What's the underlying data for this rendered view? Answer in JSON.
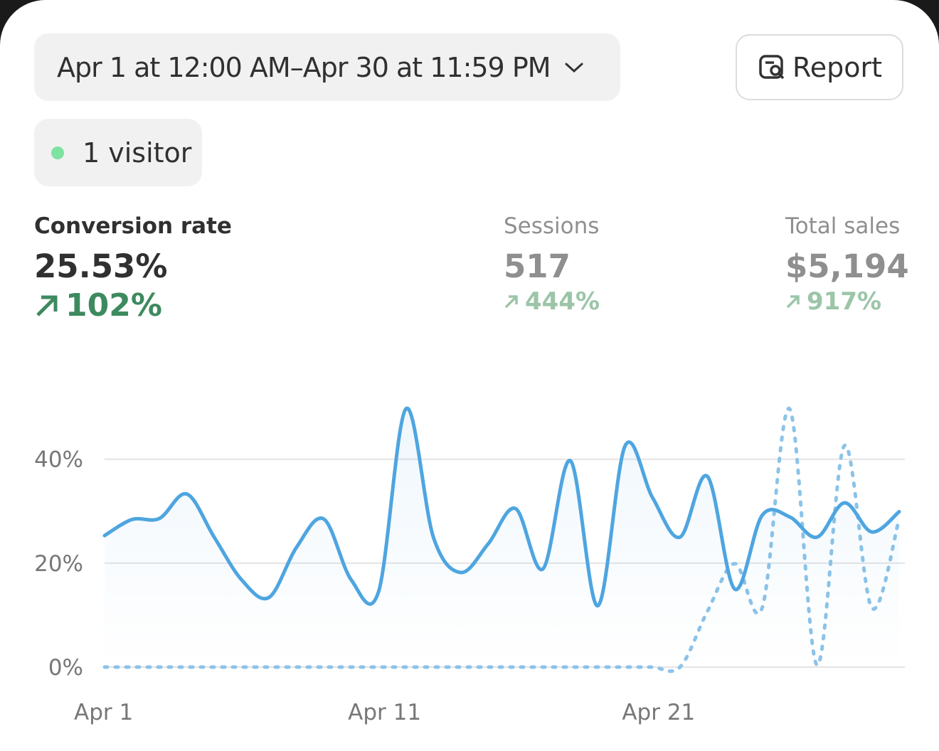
{
  "header": {
    "date_range": "Apr 1 at 12:00 AM–Apr 30 at 11:59 PM",
    "report_button": "Report",
    "visitors": "1 visitor"
  },
  "metrics": [
    {
      "label": "Conversion rate",
      "value": "25.53%",
      "change": "102%"
    },
    {
      "label": "Sessions",
      "value": "517",
      "change": "444%"
    },
    {
      "label": "Total sales",
      "value": "$5,194",
      "change": "917%"
    }
  ],
  "chart_data": {
    "type": "line",
    "categories": [
      "Apr 1",
      null,
      null,
      null,
      null,
      null,
      null,
      null,
      null,
      null,
      "Apr 11",
      null,
      null,
      null,
      null,
      null,
      null,
      null,
      null,
      null,
      "Apr 21",
      null,
      null,
      null,
      null,
      null,
      null,
      null,
      null,
      null
    ],
    "series": [
      {
        "color": "#4ea5e0",
        "style": "solid",
        "values": [
          25.3,
          28.4,
          28.6,
          33.3,
          25,
          16.8,
          13.4,
          23,
          28.5,
          16.8,
          14.5,
          49.7,
          25,
          18.2,
          23.7,
          30.5,
          18.9,
          39.7,
          11.8,
          42.6,
          32.6,
          25,
          36.7,
          15,
          29.2,
          28.9,
          25,
          31.6,
          26,
          29.9
        ]
      },
      {
        "color": "#8cc3e8",
        "style": "dashed",
        "values": [
          0,
          0,
          0,
          0,
          0,
          0,
          0,
          0,
          0,
          0,
          0,
          0,
          0,
          0,
          0,
          0,
          0,
          0,
          0,
          0,
          0,
          0,
          10.7,
          19.9,
          11.4,
          49.7,
          0.4,
          42.6,
          11.4,
          28.5
        ]
      }
    ],
    "ylim": [
      0,
      52
    ],
    "yticks": [
      {
        "value": 0,
        "label": "0%"
      },
      {
        "value": 20,
        "label": "20%"
      },
      {
        "value": 40,
        "label": "40%"
      }
    ],
    "grid": true
  }
}
